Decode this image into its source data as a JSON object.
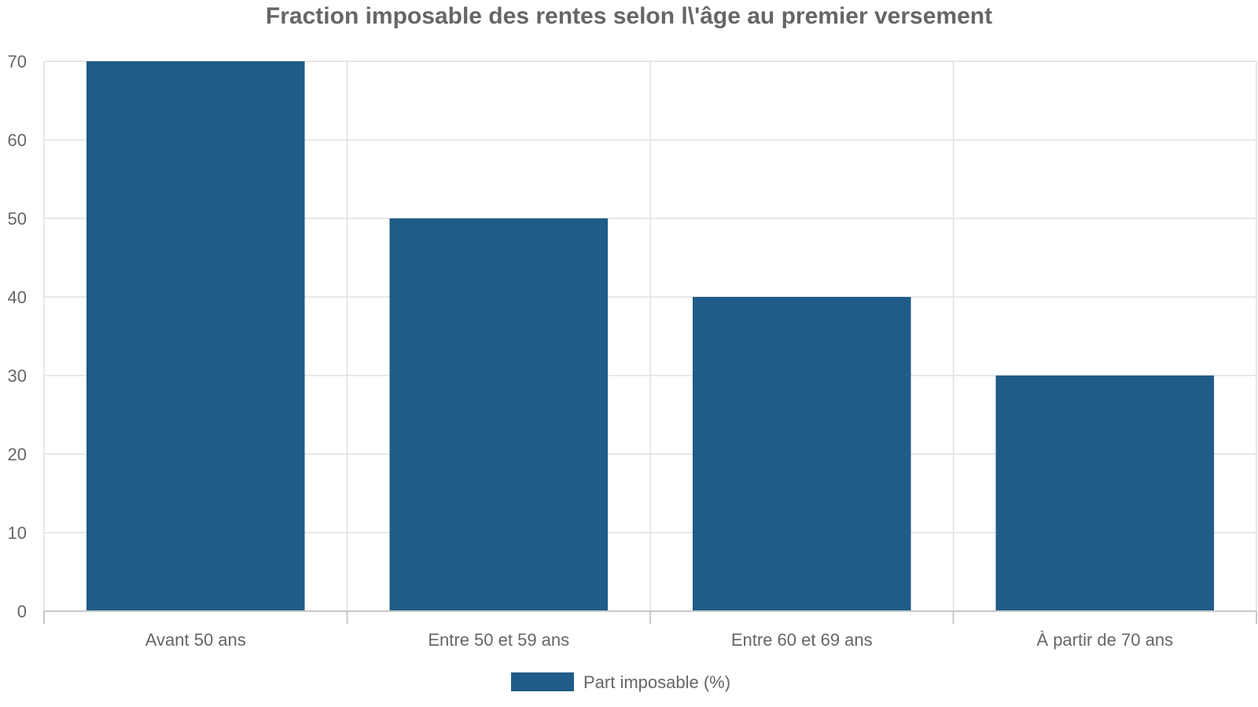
{
  "chart_data": {
    "type": "bar",
    "title": "Fraction imposable des rentes selon l\\'âge au premier versement",
    "categories": [
      "Avant 50 ans",
      "Entre 50 et 59 ans",
      "Entre 60 et 69 ans",
      "À partir de 70 ans"
    ],
    "series": [
      {
        "name": "Part imposable (%)",
        "values": [
          70,
          50,
          40,
          30
        ],
        "color": "#1f5c87"
      }
    ],
    "xlabel": "",
    "ylabel": "",
    "ylim": [
      0,
      70
    ],
    "yticks": [
      0,
      10,
      20,
      30,
      40,
      50,
      60,
      70
    ],
    "grid": true,
    "legend_position": "bottom"
  }
}
